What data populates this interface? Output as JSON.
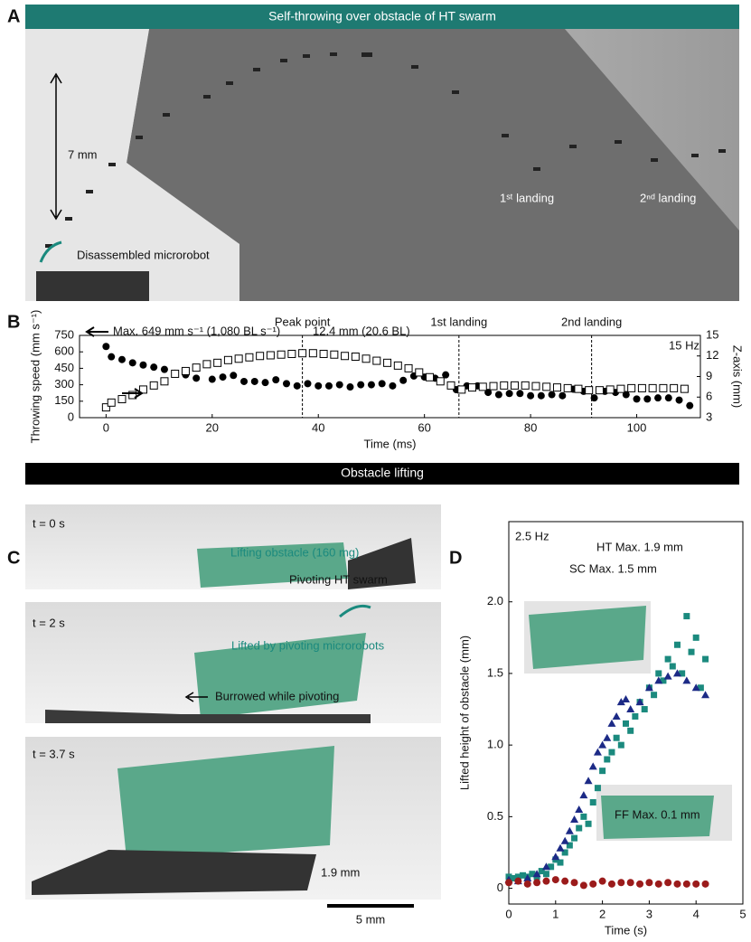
{
  "figure": {
    "panel_a": {
      "label": "A",
      "banner": "Self-throwing over obstacle of HT swarm",
      "scale": "7 mm",
      "robot": "Disassembled microrobot",
      "landing1": "1ˢᵗ landing",
      "landing2": "2ⁿᵈ landing"
    },
    "banner_2": "Obstacle lifting",
    "panel_c": {
      "label": "C",
      "t0": "t = 0 s",
      "lifting": "Lifting obstacle (160 mg)",
      "pivoting": "Pivoting HT swarm",
      "t2": "t = 2 s",
      "lifted": "Lifted by pivoting microrobots",
      "burrowed": "Burrowed while pivoting",
      "t37": "t = 3.7 s",
      "height": "1.9 mm",
      "scalebar": "5 mm"
    }
  },
  "chart_data": [
    {
      "type": "scatter",
      "panel": "B",
      "xlabel": "Time (ms)",
      "ylabel": "Throwing speed (mm s⁻¹)",
      "y2label": "Z-axis (mm)",
      "xlim": [
        -5,
        112
      ],
      "xticks": [
        0,
        20,
        40,
        60,
        80,
        100
      ],
      "ylim": [
        0,
        750
      ],
      "yticks": [
        0,
        150,
        300,
        450,
        600,
        750
      ],
      "y2lim": [
        3,
        15
      ],
      "y2ticks": [
        3,
        6,
        9,
        12,
        15
      ],
      "vlines": [
        {
          "x": 37,
          "label": "Peak point"
        },
        {
          "x": 66.5,
          "label": "1st landing"
        },
        {
          "x": 91.5,
          "label": "2nd landing"
        }
      ],
      "annotations": [
        "Max. 649 mm s⁻¹ (1,080 BL s⁻¹)",
        "12.4 mm (20.6 BL)",
        "15 Hz"
      ],
      "series": [
        {
          "marker": "circle",
          "color": "#000000",
          "axis": "y",
          "x": [
            0,
            1,
            3,
            5,
            7,
            9,
            11,
            13,
            15,
            17,
            20,
            22,
            24,
            26,
            28,
            30,
            32,
            34,
            36,
            38,
            40,
            42,
            44,
            46,
            48,
            50,
            52,
            54,
            56,
            58,
            60,
            62,
            64,
            66,
            68,
            70,
            72,
            74,
            76,
            78,
            80,
            82,
            84,
            86,
            88,
            90,
            92,
            94,
            96,
            98,
            100,
            102,
            104,
            106,
            108,
            110
          ],
          "values": [
            649,
            555,
            530,
            500,
            480,
            460,
            440,
            405,
            390,
            360,
            350,
            370,
            385,
            330,
            330,
            320,
            345,
            310,
            290,
            310,
            290,
            290,
            300,
            280,
            300,
            300,
            310,
            290,
            340,
            380,
            370,
            360,
            390,
            255,
            290,
            290,
            230,
            210,
            220,
            220,
            200,
            200,
            210,
            200,
            260,
            240,
            180,
            240,
            230,
            210,
            170,
            170,
            180,
            180,
            160,
            110
          ]
        },
        {
          "marker": "square-open",
          "color": "#000000",
          "axis": "y2",
          "x": [
            0,
            1,
            3,
            5,
            7,
            9,
            11,
            13,
            15,
            17,
            19,
            21,
            23,
            25,
            27,
            29,
            31,
            33,
            35,
            37,
            39,
            41,
            43,
            45,
            47,
            49,
            51,
            53,
            55,
            57,
            59,
            61,
            63,
            65,
            67,
            69,
            71,
            73,
            75,
            77,
            79,
            81,
            83,
            85,
            87,
            89,
            91,
            93,
            95,
            97,
            99,
            101,
            103,
            105,
            107,
            109
          ],
          "values": [
            4.5,
            5.2,
            5.7,
            6.3,
            7.1,
            7.7,
            8.3,
            9.4,
            9.8,
            10.3,
            10.8,
            11.0,
            11.4,
            11.6,
            11.8,
            12.0,
            12.1,
            12.2,
            12.3,
            12.4,
            12.4,
            12.3,
            12.2,
            12.0,
            11.9,
            11.6,
            11.3,
            11.0,
            10.6,
            10.2,
            9.6,
            8.9,
            8.3,
            7.7,
            7.1,
            7.4,
            7.5,
            7.6,
            7.7,
            7.7,
            7.7,
            7.6,
            7.5,
            7.4,
            7.3,
            7.2,
            7.0,
            7.0,
            7.1,
            7.2,
            7.3,
            7.3,
            7.3,
            7.3,
            7.3,
            7.2
          ]
        }
      ]
    },
    {
      "type": "scatter",
      "panel": "D",
      "xlabel": "Time (s)",
      "ylabel": "Lifted height of obstacle (mm)",
      "xlim": [
        0,
        5
      ],
      "xticks": [
        0,
        1,
        2,
        3,
        4,
        5
      ],
      "ylim": [
        -0.11,
        2.56
      ],
      "yticks": [
        0,
        0.5,
        {
          "value": 1,
          "label": "1.0"
        },
        1.5,
        {
          "value": 2,
          "label": "2.0"
        }
      ],
      "annotations": [
        "2.5 Hz"
      ],
      "series": [
        {
          "name": "HT Max. 1.9 mm",
          "marker": "square",
          "color": "#1b8a7e",
          "axis": "y",
          "x": [
            0,
            0.1,
            0.2,
            0.3,
            0.4,
            0.5,
            0.6,
            0.7,
            0.8,
            0.9,
            1.0,
            1.1,
            1.2,
            1.3,
            1.4,
            1.5,
            1.6,
            1.7,
            1.8,
            1.9,
            2.0,
            2.1,
            2.2,
            2.3,
            2.4,
            2.5,
            2.6,
            2.7,
            2.8,
            2.9,
            3.0,
            3.1,
            3.2,
            3.3,
            3.4,
            3.5,
            3.6,
            3.7,
            3.8,
            3.9,
            4.0,
            4.1,
            4.2
          ],
          "values": [
            0.08,
            0.07,
            0.08,
            0.09,
            0.08,
            0.1,
            0.08,
            0.12,
            0.1,
            0.15,
            0.2,
            0.18,
            0.25,
            0.3,
            0.35,
            0.42,
            0.5,
            0.45,
            0.6,
            0.7,
            0.82,
            0.9,
            0.95,
            1.05,
            1.0,
            1.15,
            1.1,
            1.2,
            1.3,
            1.25,
            1.4,
            1.35,
            1.5,
            1.45,
            1.6,
            1.55,
            1.7,
            1.5,
            1.9,
            1.65,
            1.75,
            1.4,
            1.6
          ]
        },
        {
          "name": "SC Max. 1.5 mm",
          "marker": "triangle",
          "color": "#1c2a86",
          "axis": "y",
          "x": [
            0,
            0.2,
            0.4,
            0.6,
            0.8,
            1.0,
            1.1,
            1.2,
            1.3,
            1.4,
            1.5,
            1.6,
            1.7,
            1.8,
            1.9,
            2.0,
            2.1,
            2.2,
            2.3,
            2.4,
            2.5,
            2.6,
            2.8,
            3.0,
            3.2,
            3.4,
            3.6,
            3.8,
            4.0,
            4.2
          ],
          "values": [
            0.06,
            0.05,
            0.07,
            0.1,
            0.15,
            0.22,
            0.28,
            0.33,
            0.4,
            0.48,
            0.55,
            0.65,
            0.75,
            0.85,
            0.95,
            1.0,
            1.05,
            1.15,
            1.2,
            1.3,
            1.32,
            1.25,
            1.3,
            1.4,
            1.45,
            1.48,
            1.5,
            1.45,
            1.4,
            1.35
          ]
        },
        {
          "name": "FF Max. 0.1 mm",
          "marker": "circle",
          "color": "#9b1b1b",
          "axis": "y",
          "x": [
            0,
            0.2,
            0.4,
            0.6,
            0.8,
            1.0,
            1.2,
            1.4,
            1.6,
            1.8,
            2.0,
            2.2,
            2.4,
            2.6,
            2.8,
            3.0,
            3.2,
            3.4,
            3.6,
            3.8,
            4.0,
            4.2
          ],
          "values": [
            0.04,
            0.05,
            0.03,
            0.04,
            0.05,
            0.06,
            0.05,
            0.04,
            0.02,
            0.03,
            0.05,
            0.03,
            0.04,
            0.04,
            0.03,
            0.04,
            0.03,
            0.04,
            0.03,
            0.03,
            0.03,
            0.03
          ]
        }
      ]
    }
  ]
}
